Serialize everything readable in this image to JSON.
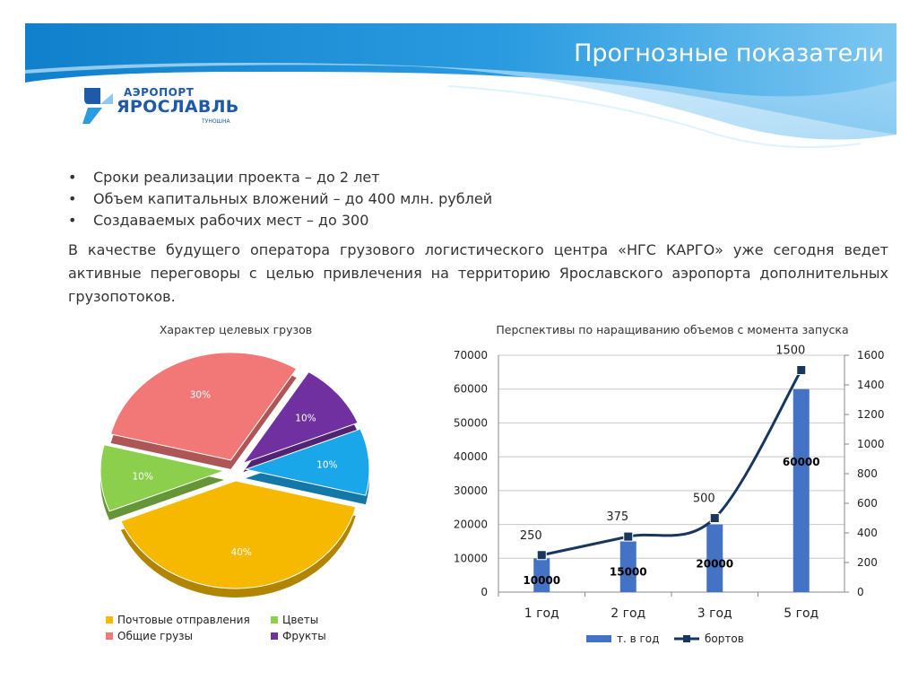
{
  "header": {
    "title": "Прогнозные показатели",
    "logo": {
      "top_text": "АЭРОПОРТ",
      "main_text": "ЯРОСЛАВЛЬ",
      "sub_text": "ТУНОШНА"
    },
    "colors": {
      "wave_dark": "#1a8ad4",
      "wave_light": "#9fd3f4"
    }
  },
  "bullets": [
    "Сроки реализации проекта – до 2 лет",
    "Объем капитальных вложений – до 400 млн. рублей",
    "Создаваемых рабочих мест – до 300"
  ],
  "paragraph": "В качестве будущего оператора грузового логистического центра «НГС КАРГО» уже сегодня ведет активные переговоры с целью привлечения на территорию Ярославского аэропорта дополнительных грузопотоков.",
  "chart_data": [
    {
      "type": "pie",
      "title": "Характер целевых грузов",
      "slices": [
        {
          "name": "Почтовые отправления",
          "value": 40,
          "label": "40%",
          "color": "#f7b900"
        },
        {
          "name": "Цветы",
          "value": 10,
          "label": "10%",
          "color": "#8ccf4d"
        },
        {
          "name": "Общие грузы",
          "value": 30,
          "label": "30%",
          "color": "#f27878"
        },
        {
          "name": "Фрукты",
          "value": 10,
          "label": "10%",
          "color": "#7030a0"
        },
        {
          "name": "",
          "value": 10,
          "label": "10%",
          "color": "#1aa7ea"
        }
      ],
      "legend": [
        {
          "label": "Почтовые отправления",
          "color": "#f7b900"
        },
        {
          "label": "Цветы",
          "color": "#8ccf4d"
        },
        {
          "label": "Общие грузы",
          "color": "#f27878"
        },
        {
          "label": "Фрукты",
          "color": "#7030a0"
        }
      ],
      "legend_position": "bottom"
    },
    {
      "type": "bar",
      "title": "Перспективы по наращиванию объемов с момента запуска",
      "categories": [
        "1 год",
        "2 год",
        "3 год",
        "5 год"
      ],
      "series": [
        {
          "name": "т. в год",
          "kind": "bar",
          "axis": "left",
          "values": [
            10000,
            15000,
            20000,
            60000
          ],
          "labels": [
            "10000",
            "15000",
            "20000",
            "60000"
          ],
          "color": "#4472c4"
        },
        {
          "name": "бортов",
          "kind": "line",
          "axis": "right",
          "values": [
            250,
            375,
            500,
            1500
          ],
          "labels": [
            "250",
            "375",
            "500",
            "1500"
          ],
          "color": "#17375e"
        }
      ],
      "y_left": {
        "ylim": [
          0,
          70000
        ],
        "ticks": [
          "0",
          "10000",
          "20000",
          "30000",
          "40000",
          "50000",
          "60000",
          "70000"
        ]
      },
      "y_right": {
        "ylim": [
          0,
          1600
        ],
        "ticks": [
          "0",
          "200",
          "400",
          "600",
          "800",
          "1000",
          "1200",
          "1400",
          "1600"
        ]
      },
      "grid": "horizontal",
      "legend_position": "bottom"
    }
  ]
}
